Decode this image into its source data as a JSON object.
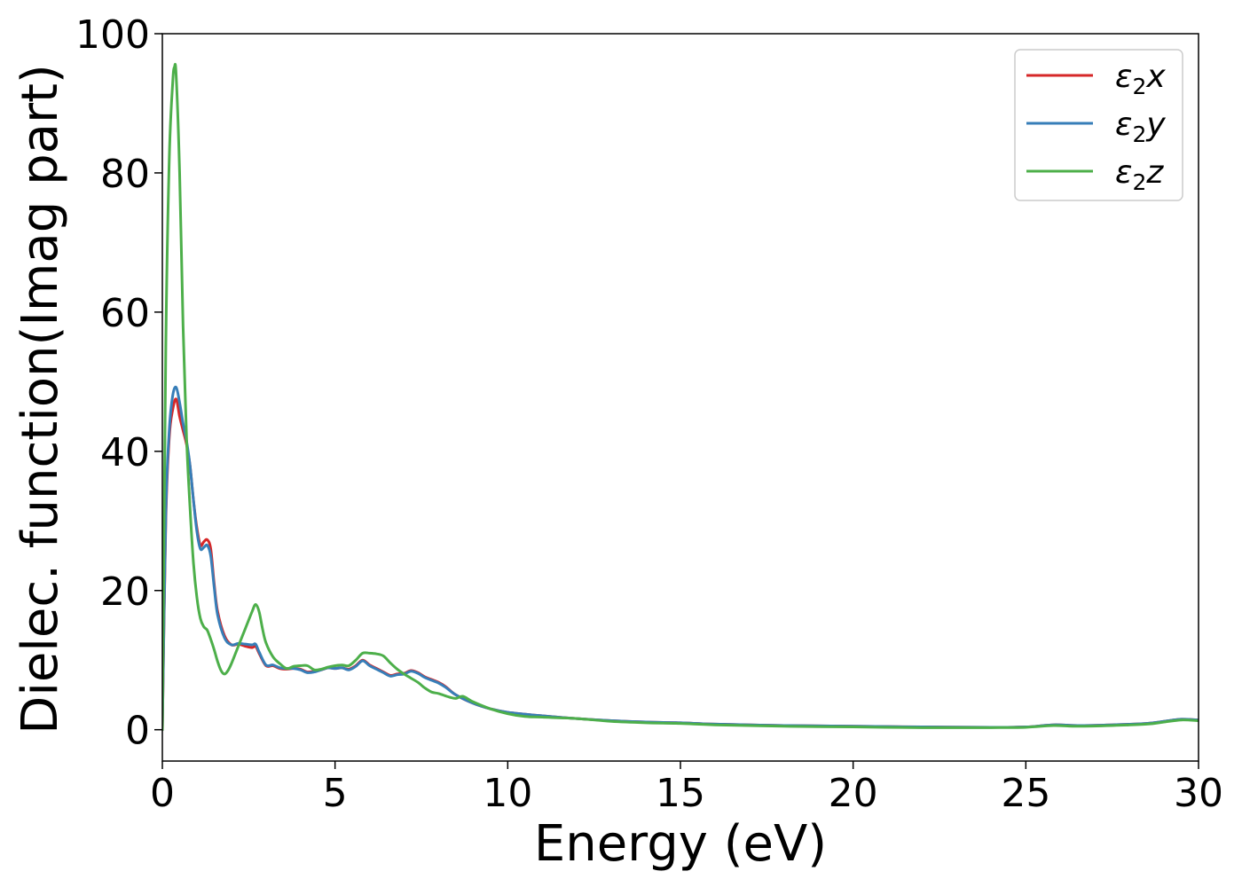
{
  "chart_data": {
    "type": "line",
    "title": "",
    "xlabel": "Energy (eV)",
    "ylabel": "Dielec. function(Imag part)",
    "xlim": [
      0,
      30
    ],
    "ylim": [
      -4.5,
      100
    ],
    "xticks": [
      0,
      5,
      10,
      15,
      20,
      25,
      30
    ],
    "yticks": [
      0,
      20,
      40,
      60,
      80,
      100
    ],
    "grid": false,
    "legend_position": "top-right",
    "series": [
      {
        "name": "ε₂x",
        "label_base": "ε",
        "label_sub": "2",
        "label_var": "x",
        "color": "#d62728",
        "points": [
          [
            0,
            0
          ],
          [
            0.1,
            30
          ],
          [
            0.2,
            42
          ],
          [
            0.3,
            46
          ],
          [
            0.4,
            47.5
          ],
          [
            0.5,
            45
          ],
          [
            0.6,
            43
          ],
          [
            0.7,
            41
          ],
          [
            0.8,
            38
          ],
          [
            0.9,
            33
          ],
          [
            1.0,
            29
          ],
          [
            1.1,
            26.5
          ],
          [
            1.2,
            27
          ],
          [
            1.3,
            27.3
          ],
          [
            1.4,
            26
          ],
          [
            1.5,
            21
          ],
          [
            1.6,
            17
          ],
          [
            1.8,
            13.5
          ],
          [
            2.0,
            12.2
          ],
          [
            2.2,
            12.3
          ],
          [
            2.4,
            12.0
          ],
          [
            2.6,
            11.8
          ],
          [
            2.7,
            12
          ],
          [
            2.8,
            11
          ],
          [
            3.0,
            9.2
          ],
          [
            3.2,
            9.2
          ],
          [
            3.4,
            8.8
          ],
          [
            3.6,
            8.7
          ],
          [
            3.8,
            8.8
          ],
          [
            4.0,
            8.7
          ],
          [
            4.2,
            8.3
          ],
          [
            4.4,
            8.4
          ],
          [
            4.6,
            8.6
          ],
          [
            4.8,
            8.9
          ],
          [
            5.0,
            8.8
          ],
          [
            5.2,
            8.9
          ],
          [
            5.4,
            8.7
          ],
          [
            5.6,
            9.2
          ],
          [
            5.8,
            10.0
          ],
          [
            6.0,
            9.3
          ],
          [
            6.2,
            8.8
          ],
          [
            6.4,
            8.3
          ],
          [
            6.6,
            7.8
          ],
          [
            6.8,
            8.0
          ],
          [
            7.0,
            8.1
          ],
          [
            7.2,
            8.5
          ],
          [
            7.4,
            8.2
          ],
          [
            7.6,
            7.6
          ],
          [
            7.8,
            7.2
          ],
          [
            8.0,
            6.8
          ],
          [
            8.2,
            6.2
          ],
          [
            8.5,
            5.0
          ],
          [
            9.0,
            3.8
          ],
          [
            9.5,
            3.0
          ],
          [
            10.0,
            2.5
          ],
          [
            11.0,
            2.0
          ],
          [
            12.0,
            1.6
          ],
          [
            13.0,
            1.3
          ],
          [
            14.0,
            1.1
          ],
          [
            15.0,
            1.0
          ],
          [
            16.0,
            0.8
          ],
          [
            18.0,
            0.6
          ],
          [
            20.0,
            0.5
          ],
          [
            22.0,
            0.4
          ],
          [
            24.0,
            0.35
          ],
          [
            25.0,
            0.4
          ],
          [
            25.8,
            0.7
          ],
          [
            26.5,
            0.6
          ],
          [
            27.5,
            0.7
          ],
          [
            28.5,
            0.9
          ],
          [
            29.0,
            1.2
          ],
          [
            29.5,
            1.5
          ],
          [
            30.0,
            1.4
          ]
        ]
      },
      {
        "name": "ε₂y",
        "label_base": "ε",
        "label_sub": "2",
        "label_var": "y",
        "color": "#377eb8",
        "points": [
          [
            0,
            0
          ],
          [
            0.1,
            31
          ],
          [
            0.2,
            43
          ],
          [
            0.3,
            48
          ],
          [
            0.4,
            49.2
          ],
          [
            0.5,
            47
          ],
          [
            0.6,
            44
          ],
          [
            0.7,
            41.5
          ],
          [
            0.8,
            38
          ],
          [
            0.9,
            33
          ],
          [
            1.0,
            28.5
          ],
          [
            1.1,
            26
          ],
          [
            1.2,
            26.2
          ],
          [
            1.3,
            26.5
          ],
          [
            1.4,
            25
          ],
          [
            1.5,
            20.5
          ],
          [
            1.6,
            16.5
          ],
          [
            1.8,
            13.2
          ],
          [
            2.0,
            12.2
          ],
          [
            2.2,
            12.4
          ],
          [
            2.4,
            12.3
          ],
          [
            2.6,
            12.2
          ],
          [
            2.7,
            12.3
          ],
          [
            2.8,
            11.2
          ],
          [
            3.0,
            9.3
          ],
          [
            3.2,
            9.3
          ],
          [
            3.4,
            8.9
          ],
          [
            3.6,
            8.8
          ],
          [
            3.8,
            8.8
          ],
          [
            4.0,
            8.6
          ],
          [
            4.2,
            8.2
          ],
          [
            4.4,
            8.3
          ],
          [
            4.6,
            8.6
          ],
          [
            4.8,
            8.9
          ],
          [
            5.0,
            8.8
          ],
          [
            5.2,
            8.9
          ],
          [
            5.4,
            8.6
          ],
          [
            5.6,
            9.1
          ],
          [
            5.8,
            9.9
          ],
          [
            6.0,
            9.2
          ],
          [
            6.2,
            8.7
          ],
          [
            6.4,
            8.2
          ],
          [
            6.6,
            7.7
          ],
          [
            6.8,
            7.9
          ],
          [
            7.0,
            8.0
          ],
          [
            7.2,
            8.4
          ],
          [
            7.4,
            8.1
          ],
          [
            7.6,
            7.5
          ],
          [
            7.8,
            7.1
          ],
          [
            8.0,
            6.7
          ],
          [
            8.2,
            6.1
          ],
          [
            8.5,
            5.0
          ],
          [
            9.0,
            3.8
          ],
          [
            9.5,
            3.0
          ],
          [
            10.0,
            2.5
          ],
          [
            11.0,
            2.0
          ],
          [
            12.0,
            1.6
          ],
          [
            13.0,
            1.3
          ],
          [
            14.0,
            1.1
          ],
          [
            15.0,
            1.0
          ],
          [
            16.0,
            0.8
          ],
          [
            18.0,
            0.6
          ],
          [
            20.0,
            0.5
          ],
          [
            22.0,
            0.4
          ],
          [
            24.0,
            0.35
          ],
          [
            25.0,
            0.4
          ],
          [
            25.8,
            0.7
          ],
          [
            26.5,
            0.6
          ],
          [
            27.5,
            0.7
          ],
          [
            28.5,
            0.9
          ],
          [
            29.0,
            1.2
          ],
          [
            29.5,
            1.5
          ],
          [
            30.0,
            1.4
          ]
        ]
      },
      {
        "name": "ε₂z",
        "label_base": "ε",
        "label_sub": "2",
        "label_var": "z",
        "color": "#4daf4a",
        "points": [
          [
            0,
            0
          ],
          [
            0.1,
            55
          ],
          [
            0.2,
            82
          ],
          [
            0.3,
            93
          ],
          [
            0.35,
            95.2
          ],
          [
            0.4,
            94
          ],
          [
            0.5,
            80
          ],
          [
            0.6,
            58
          ],
          [
            0.7,
            42
          ],
          [
            0.8,
            32
          ],
          [
            0.9,
            24
          ],
          [
            1.0,
            19
          ],
          [
            1.1,
            16
          ],
          [
            1.2,
            14.8
          ],
          [
            1.3,
            14.3
          ],
          [
            1.4,
            13
          ],
          [
            1.5,
            11.5
          ],
          [
            1.6,
            9.8
          ],
          [
            1.7,
            8.5
          ],
          [
            1.8,
            8.0
          ],
          [
            1.9,
            8.5
          ],
          [
            2.0,
            9.5
          ],
          [
            2.2,
            12
          ],
          [
            2.4,
            14.5
          ],
          [
            2.6,
            17
          ],
          [
            2.7,
            18
          ],
          [
            2.8,
            17
          ],
          [
            2.9,
            14.5
          ],
          [
            3.0,
            12.5
          ],
          [
            3.2,
            10.5
          ],
          [
            3.4,
            9.5
          ],
          [
            3.6,
            8.8
          ],
          [
            3.8,
            9.1
          ],
          [
            4.0,
            9.2
          ],
          [
            4.2,
            9.2
          ],
          [
            4.4,
            8.6
          ],
          [
            4.6,
            8.7
          ],
          [
            4.8,
            9.0
          ],
          [
            5.0,
            9.2
          ],
          [
            5.2,
            9.3
          ],
          [
            5.4,
            9.2
          ],
          [
            5.6,
            10.0
          ],
          [
            5.8,
            11.0
          ],
          [
            6.0,
            11.0
          ],
          [
            6.2,
            10.9
          ],
          [
            6.4,
            10.6
          ],
          [
            6.6,
            9.6
          ],
          [
            6.8,
            8.7
          ],
          [
            7.0,
            8.0
          ],
          [
            7.2,
            7.4
          ],
          [
            7.4,
            6.8
          ],
          [
            7.6,
            6.0
          ],
          [
            7.8,
            5.4
          ],
          [
            8.0,
            5.2
          ],
          [
            8.3,
            4.7
          ],
          [
            8.5,
            4.5
          ],
          [
            8.7,
            4.8
          ],
          [
            9.0,
            4.0
          ],
          [
            9.5,
            3.0
          ],
          [
            10.0,
            2.3
          ],
          [
            10.5,
            1.9
          ],
          [
            11.0,
            1.8
          ],
          [
            12.0,
            1.6
          ],
          [
            13.0,
            1.2
          ],
          [
            14.0,
            1.0
          ],
          [
            15.0,
            0.9
          ],
          [
            16.0,
            0.7
          ],
          [
            18.0,
            0.5
          ],
          [
            20.0,
            0.4
          ],
          [
            22.0,
            0.3
          ],
          [
            24.0,
            0.3
          ],
          [
            25.0,
            0.35
          ],
          [
            25.8,
            0.6
          ],
          [
            26.5,
            0.5
          ],
          [
            27.5,
            0.6
          ],
          [
            28.5,
            0.8
          ],
          [
            29.0,
            1.1
          ],
          [
            29.5,
            1.4
          ],
          [
            30.0,
            1.3
          ]
        ]
      }
    ]
  }
}
